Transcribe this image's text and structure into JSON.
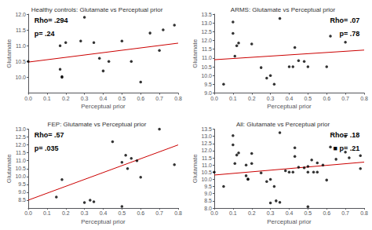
{
  "chart_data": [
    {
      "type": "scatter",
      "title": "Healthy controls: Glutamate vs Perceptual prior",
      "xlabel": "Perceptual prior",
      "ylabel": "Glutamate",
      "xlim": [
        0,
        0.8
      ],
      "ylim": [
        9.5,
        12.0
      ],
      "xticks": [
        {
          "value": 0.0,
          "label": "0.0"
        },
        0.1,
        0.2,
        0.3,
        0.4,
        0.5,
        0.6,
        0.7,
        0.8
      ],
      "yticks": [
        {
          "value": 10.0,
          "label": "10.0"
        },
        10.5,
        {
          "value": 11.0,
          "label": "11.0"
        },
        11.5,
        {
          "value": 12.0,
          "label": "12.0"
        }
      ],
      "grid": false,
      "annotations": [
        "Rho= .294",
        "p= .24"
      ],
      "series": [
        {
          "type": "scatter",
          "color": "#000000",
          "marker": "circle",
          "x": [
            0.0,
            0.17,
            0.17,
            0.18,
            0.18,
            0.2,
            0.28,
            0.3,
            0.35,
            0.38,
            0.4,
            0.43,
            0.5,
            0.55,
            0.6,
            0.65,
            0.7,
            0.72,
            0.78
          ],
          "values": [
            10.5,
            11.0,
            10.25,
            10.02,
            10.0,
            11.1,
            11.15,
            11.9,
            11.1,
            10.6,
            10.2,
            10.5,
            11.15,
            10.5,
            9.85,
            11.4,
            10.85,
            11.5,
            11.65
          ]
        },
        {
          "type": "line",
          "color": "#cc0000",
          "line_style": "solid",
          "x": [
            0.0,
            0.8
          ],
          "values": [
            10.48,
            11.08
          ]
        }
      ]
    },
    {
      "type": "scatter",
      "title": "ARMS: Glutamate vs Perceptual prior",
      "xlabel": "Perceptual prior",
      "ylabel": "Glutamate",
      "xlim": [
        0,
        0.8
      ],
      "ylim": [
        9.0,
        13.5
      ],
      "xticks": [
        {
          "value": 0.0,
          "label": "0.0"
        },
        0.1,
        0.2,
        0.3,
        0.4,
        0.5,
        0.6,
        0.7,
        0.8
      ],
      "yticks": [
        {
          "value": 9.0,
          "label": "9.0"
        },
        9.5,
        {
          "value": 10.0,
          "label": "10.0"
        },
        10.5,
        {
          "value": 11.0,
          "label": "11.0"
        },
        11.5,
        {
          "value": 12.0,
          "label": "12.0"
        },
        12.5,
        {
          "value": 13.0,
          "label": "13.0"
        },
        13.5
      ],
      "grid": false,
      "annotations": [
        "Rho= .07",
        "p= .78"
      ],
      "series": [
        {
          "type": "scatter",
          "color": "#000000",
          "marker": "circle",
          "x": [
            0.05,
            0.1,
            0.1,
            0.11,
            0.12,
            0.13,
            0.2,
            0.25,
            0.28,
            0.3,
            0.32,
            0.35,
            0.4,
            0.42,
            0.43,
            0.45,
            0.48,
            0.5,
            0.6,
            0.62,
            0.7
          ],
          "values": [
            9.5,
            12.4,
            13.05,
            11.1,
            11.7,
            11.85,
            11.8,
            10.45,
            9.85,
            10.0,
            9.5,
            13.25,
            10.5,
            10.5,
            11.6,
            10.85,
            10.8,
            10.5,
            10.5,
            12.25,
            11.9
          ]
        },
        {
          "type": "line",
          "color": "#cc0000",
          "line_style": "solid",
          "x": [
            0.0,
            0.8
          ],
          "values": [
            10.9,
            11.45
          ]
        }
      ]
    },
    {
      "type": "scatter",
      "title": "FEP: Glutamate vs Perceptual prior",
      "xlabel": "Perceptual prior",
      "ylabel": "Glutamate",
      "xlim": [
        0,
        0.8
      ],
      "ylim": [
        8.0,
        13.0
      ],
      "xticks": [
        {
          "value": 0.0,
          "label": "0.0"
        },
        0.1,
        0.2,
        0.3,
        0.4,
        0.5,
        0.6,
        0.7,
        0.8
      ],
      "yticks": [
        8.5,
        {
          "value": 9.0,
          "label": "9.0"
        },
        9.5,
        {
          "value": 10.0,
          "label": "10.0"
        },
        10.5,
        {
          "value": 11.0,
          "label": "11.0"
        },
        11.5,
        {
          "value": 12.0,
          "label": "12.0"
        },
        12.5,
        {
          "value": 13.0,
          "label": "13.0"
        }
      ],
      "grid": false,
      "annotations": [
        "Rho= .57",
        "p= .035"
      ],
      "series": [
        {
          "type": "scatter",
          "color": "#000000",
          "marker": "circle",
          "x": [
            0.15,
            0.18,
            0.3,
            0.33,
            0.35,
            0.45,
            0.5,
            0.5,
            0.52,
            0.53,
            0.55,
            0.58,
            0.6,
            0.7,
            0.78
          ],
          "values": [
            8.7,
            9.8,
            8.35,
            8.5,
            8.4,
            12.2,
            8.1,
            10.9,
            11.35,
            10.5,
            11.15,
            11.0,
            9.95,
            13.0,
            10.75
          ]
        },
        {
          "type": "line",
          "color": "#cc0000",
          "line_style": "solid",
          "x": [
            0.0,
            0.8
          ],
          "values": [
            8.5,
            12.0
          ]
        }
      ]
    },
    {
      "type": "scatter",
      "title": "All: Glutamate vs Perceptual prior",
      "xlabel": "Perceptual prior",
      "ylabel": "Glutamate",
      "xlim": [
        0,
        0.8
      ],
      "ylim": [
        8.0,
        13.5
      ],
      "xticks": [
        {
          "value": 0.0,
          "label": "0.0"
        },
        0.1,
        0.2,
        0.3,
        0.4,
        0.5,
        0.6,
        0.7,
        0.8
      ],
      "yticks": [
        {
          "value": 8.0,
          "label": "8.0"
        },
        8.5,
        {
          "value": 9.0,
          "label": "9.0"
        },
        9.5,
        {
          "value": 10.0,
          "label": "10.0"
        },
        10.5,
        {
          "value": 11.0,
          "label": "11.0"
        },
        11.5,
        {
          "value": 12.0,
          "label": "12.0"
        },
        12.5,
        {
          "value": 13.0,
          "label": "13.0"
        },
        13.5
      ],
      "grid": false,
      "annotations": [
        "Rho= .18",
        "■ p= .21"
      ],
      "series": [
        {
          "type": "scatter",
          "color": "#000000",
          "marker": "circle",
          "x": [
            0.0,
            0.05,
            0.1,
            0.1,
            0.11,
            0.12,
            0.13,
            0.17,
            0.17,
            0.18,
            0.18,
            0.2,
            0.2,
            0.25,
            0.28,
            0.3,
            0.3,
            0.32,
            0.33,
            0.35,
            0.35,
            0.38,
            0.4,
            0.42,
            0.43,
            0.43,
            0.45,
            0.48,
            0.5,
            0.5,
            0.5,
            0.52,
            0.53,
            0.55,
            0.55,
            0.58,
            0.6,
            0.62,
            0.65,
            0.7,
            0.7,
            0.72,
            0.78,
            0.78
          ],
          "values": [
            10.5,
            9.5,
            12.4,
            13.05,
            11.1,
            11.7,
            11.85,
            11.0,
            10.25,
            10.02,
            10.0,
            11.1,
            11.8,
            10.45,
            9.85,
            10.0,
            8.35,
            9.5,
            8.5,
            13.25,
            8.4,
            10.6,
            10.5,
            10.5,
            11.6,
            12.2,
            10.85,
            10.8,
            8.1,
            10.5,
            10.9,
            11.35,
            10.5,
            11.15,
            10.5,
            11.0,
            9.95,
            12.25,
            11.4,
            13.0,
            11.9,
            11.5,
            11.65,
            10.75
          ]
        },
        {
          "type": "line",
          "color": "#cc0000",
          "line_style": "solid",
          "x": [
            0.0,
            0.8
          ],
          "values": [
            10.3,
            11.2
          ]
        }
      ]
    }
  ]
}
